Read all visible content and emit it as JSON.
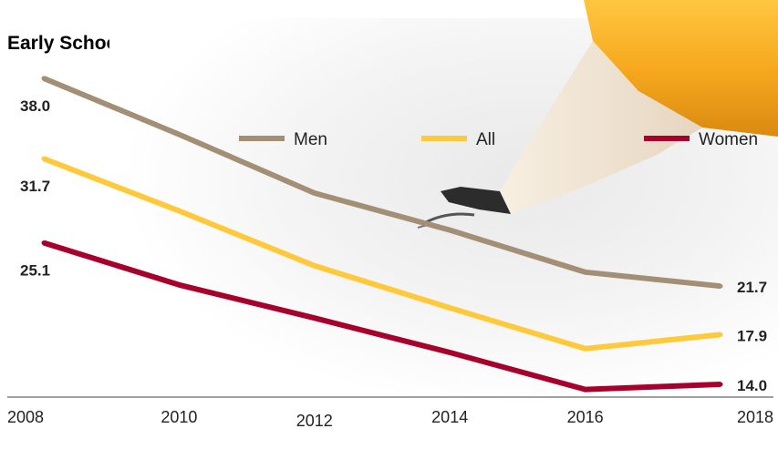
{
  "chart_data": {
    "type": "line",
    "title": "Early School leavers",
    "title_suffix": "*",
    "xlabel": "",
    "ylabel": "",
    "x": [
      2008,
      2010,
      2012,
      2014,
      2016,
      2018
    ],
    "x_tick_labels": [
      "2008",
      "2010",
      "2012",
      "2014",
      "2016",
      "2018"
    ],
    "ylim": [
      10,
      42
    ],
    "grid": false,
    "legend_placement": "top",
    "series": [
      {
        "name": "Men",
        "color": "#a38f75",
        "values": [
          38.0,
          33.6,
          29.0,
          26.1,
          22.8,
          21.7
        ]
      },
      {
        "name": "All",
        "color": "#ffc93c",
        "values": [
          31.7,
          27.6,
          23.3,
          20.0,
          16.8,
          17.9
        ]
      },
      {
        "name": "Women",
        "color": "#a7002c",
        "values": [
          25.1,
          21.8,
          19.2,
          16.5,
          13.6,
          14.0
        ]
      }
    ],
    "data_labels": {
      "start": [
        "38.0",
        "31.7",
        "25.1"
      ],
      "end": [
        "21.7",
        "17.9",
        "14.0"
      ]
    }
  }
}
